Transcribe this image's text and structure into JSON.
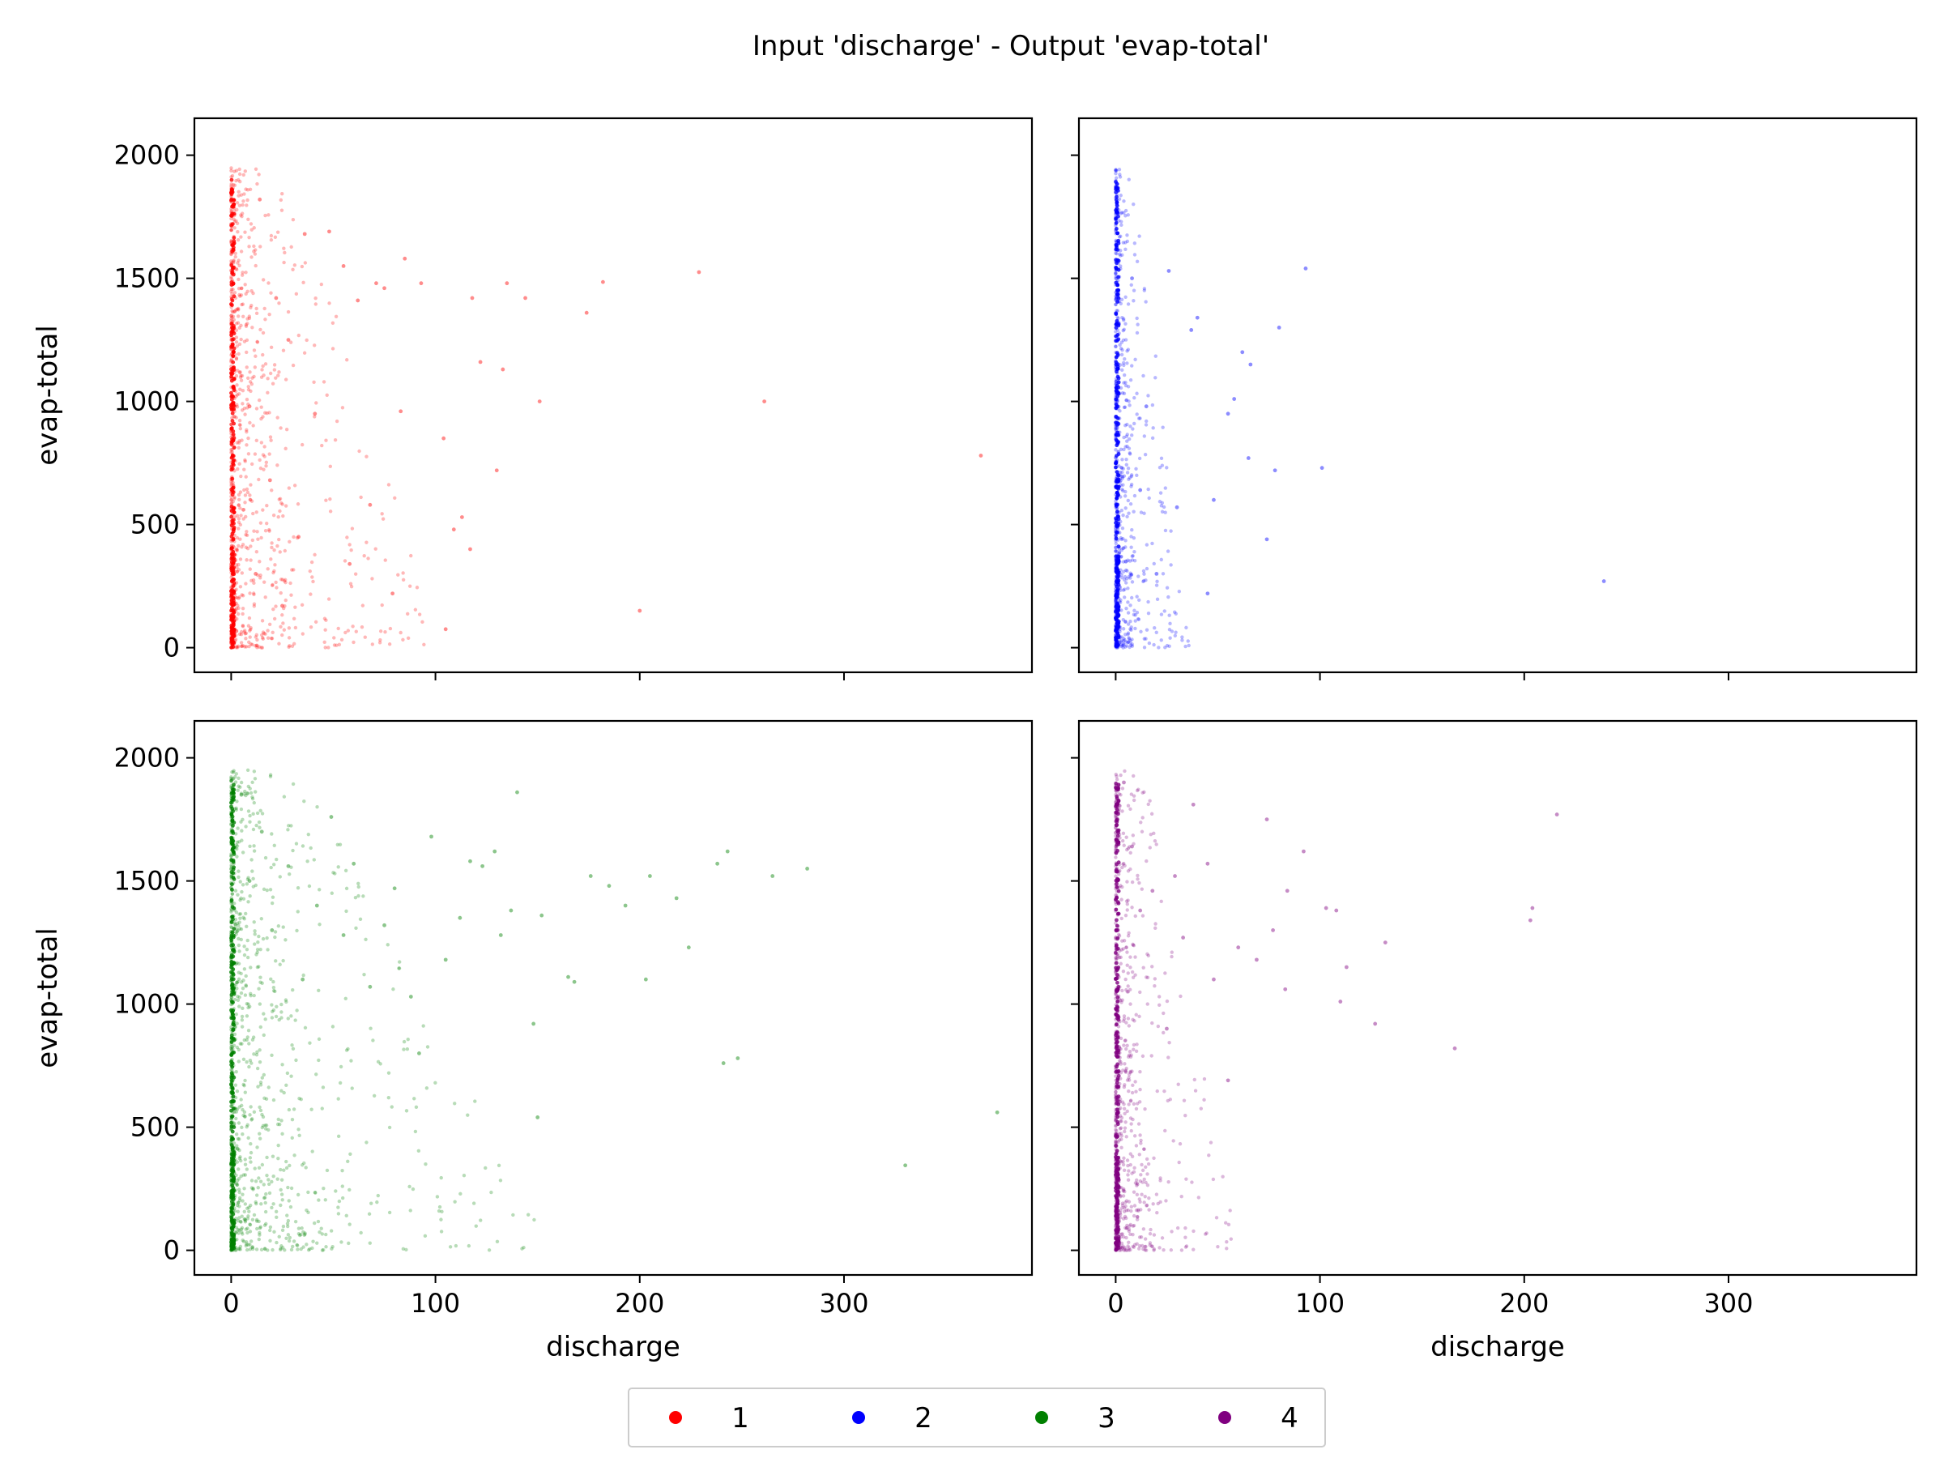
{
  "figure": {
    "title": "Input 'discharge' - Output 'evap-total'"
  },
  "legend": {
    "placement": "bottom-center",
    "entries": [
      {
        "label": "1",
        "color": "#ff0000"
      },
      {
        "label": "2",
        "color": "#0000ff"
      },
      {
        "label": "3",
        "color": "#008000"
      },
      {
        "label": "4",
        "color": "#800080"
      }
    ]
  },
  "chart_data": [
    {
      "type": "scatter",
      "series": [
        {
          "name": "1",
          "color": "#ff0000",
          "points": [
            [
              367,
              780
            ],
            [
              261,
              1000
            ],
            [
              229,
              1525
            ],
            [
              200,
              150
            ],
            [
              182,
              1485
            ],
            [
              174,
              1360
            ],
            [
              151,
              1000
            ],
            [
              144,
              1420
            ],
            [
              135,
              1480
            ],
            [
              133,
              1130
            ],
            [
              130,
              720
            ],
            [
              122,
              1160
            ],
            [
              118,
              1420
            ],
            [
              117,
              400
            ],
            [
              113,
              530
            ],
            [
              109,
              480
            ],
            [
              104,
              850
            ],
            [
              105,
              75
            ],
            [
              93,
              1480
            ],
            [
              85,
              1580
            ],
            [
              83,
              960
            ],
            [
              79,
              220
            ],
            [
              75,
              1460
            ],
            [
              71,
              1480
            ],
            [
              68,
              580
            ],
            [
              62,
              1410
            ],
            [
              58,
              340
            ],
            [
              55,
              1550
            ],
            [
              48,
              1690
            ],
            [
              41,
              950
            ],
            [
              36,
              1680
            ],
            [
              33,
              450
            ],
            [
              28,
              1250
            ],
            [
              25,
              170
            ],
            [
              22,
              1420
            ],
            [
              19,
              680
            ],
            [
              14,
              1820
            ],
            [
              12,
              300
            ],
            [
              9,
              980
            ],
            [
              6,
              560
            ]
          ]
        }
      ],
      "xlabel": "",
      "ylabel": "evap-total",
      "xlim": [
        -18,
        392
      ],
      "ylim": [
        -100,
        2150
      ],
      "xticks": [
        0,
        100,
        200,
        300
      ],
      "yticks": [
        0,
        500,
        1000,
        1500,
        2000
      ],
      "show_xticklabels": false,
      "show_yticklabels": true,
      "grid": false
    },
    {
      "type": "scatter",
      "series": [
        {
          "name": "2",
          "color": "#0000ff",
          "points": [
            [
              239,
              270
            ],
            [
              101,
              730
            ],
            [
              93,
              1540
            ],
            [
              80,
              1300
            ],
            [
              78,
              720
            ],
            [
              74,
              440
            ],
            [
              66,
              1150
            ],
            [
              65,
              770
            ],
            [
              62,
              1200
            ],
            [
              58,
              1010
            ],
            [
              55,
              950
            ],
            [
              48,
              600
            ],
            [
              45,
              220
            ],
            [
              40,
              1340
            ],
            [
              37,
              1290
            ],
            [
              30,
              570
            ],
            [
              26,
              1530
            ],
            [
              20,
              300
            ],
            [
              15,
              980
            ],
            [
              12,
              640
            ],
            [
              8,
              1500
            ],
            [
              5,
              350
            ]
          ]
        }
      ],
      "xlabel": "",
      "ylabel": "",
      "xlim": [
        -18,
        392
      ],
      "ylim": [
        -100,
        2150
      ],
      "xticks": [
        0,
        100,
        200,
        300
      ],
      "yticks": [
        0,
        500,
        1000,
        1500,
        2000
      ],
      "show_xticklabels": false,
      "show_yticklabels": false,
      "grid": false
    },
    {
      "type": "scatter",
      "series": [
        {
          "name": "3",
          "color": "#008000",
          "points": [
            [
              375,
              560
            ],
            [
              330,
              345
            ],
            [
              282,
              1550
            ],
            [
              265,
              1520
            ],
            [
              248,
              780
            ],
            [
              243,
              1620
            ],
            [
              241,
              760
            ],
            [
              238,
              1570
            ],
            [
              224,
              1230
            ],
            [
              218,
              1430
            ],
            [
              205,
              1520
            ],
            [
              203,
              1100
            ],
            [
              193,
              1400
            ],
            [
              185,
              1480
            ],
            [
              176,
              1520
            ],
            [
              168,
              1090
            ],
            [
              165,
              1110
            ],
            [
              152,
              1360
            ],
            [
              150,
              540
            ],
            [
              148,
              920
            ],
            [
              140,
              1860
            ],
            [
              137,
              1380
            ],
            [
              132,
              1280
            ],
            [
              129,
              1620
            ],
            [
              123,
              1560
            ],
            [
              117,
              1580
            ],
            [
              112,
              1350
            ],
            [
              105,
              1180
            ],
            [
              98,
              1680
            ],
            [
              92,
              800
            ],
            [
              88,
              1030
            ],
            [
              80,
              1470
            ],
            [
              75,
              1320
            ],
            [
              68,
              1070
            ],
            [
              60,
              1570
            ],
            [
              55,
              1280
            ],
            [
              49,
              1760
            ],
            [
              42,
              1400
            ],
            [
              35,
              1100
            ],
            [
              28,
              1560
            ],
            [
              20,
              1300
            ],
            [
              15,
              1700
            ],
            [
              9,
              1500
            ],
            [
              5,
              1850
            ]
          ]
        }
      ],
      "xlabel": "discharge",
      "ylabel": "evap-total",
      "xlim": [
        -18,
        392
      ],
      "ylim": [
        -100,
        2150
      ],
      "xticks": [
        0,
        100,
        200,
        300
      ],
      "yticks": [
        0,
        500,
        1000,
        1500,
        2000
      ],
      "show_xticklabels": true,
      "show_yticklabels": true,
      "grid": false
    },
    {
      "type": "scatter",
      "series": [
        {
          "name": "4",
          "color": "#800080",
          "points": [
            [
              216,
              1770
            ],
            [
              204,
              1390
            ],
            [
              203,
              1340
            ],
            [
              166,
              820
            ],
            [
              132,
              1250
            ],
            [
              127,
              920
            ],
            [
              113,
              1150
            ],
            [
              110,
              1010
            ],
            [
              108,
              1380
            ],
            [
              103,
              1390
            ],
            [
              92,
              1620
            ],
            [
              84,
              1460
            ],
            [
              83,
              1060
            ],
            [
              77,
              1300
            ],
            [
              74,
              1750
            ],
            [
              69,
              1180
            ],
            [
              60,
              1230
            ],
            [
              55,
              690
            ],
            [
              48,
              1100
            ],
            [
              45,
              1570
            ],
            [
              38,
              1810
            ],
            [
              33,
              1270
            ],
            [
              29,
              1520
            ],
            [
              25,
              900
            ],
            [
              18,
              1460
            ],
            [
              12,
              1380
            ],
            [
              8,
              1640
            ],
            [
              4,
              1900
            ]
          ]
        }
      ],
      "xlabel": "discharge",
      "ylabel": "",
      "xlim": [
        -18,
        392
      ],
      "ylim": [
        -100,
        2150
      ],
      "xticks": [
        0,
        100,
        200,
        300
      ],
      "yticks": [
        0,
        500,
        1000,
        1500,
        2000
      ],
      "show_xticklabels": true,
      "show_yticklabels": false,
      "grid": false
    }
  ]
}
